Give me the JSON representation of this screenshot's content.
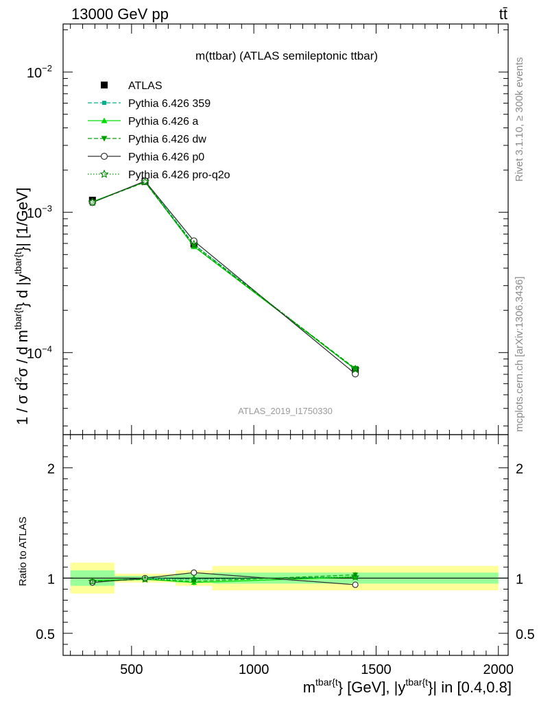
{
  "header": {
    "left": "13000 GeV pp",
    "right": "tt̄"
  },
  "side_labels": {
    "rivet": "Rivet 3.1.10, ≥ 300k events",
    "mcplots": "mcplots.cern.ch [arXiv:1306.3436]"
  },
  "chart_data": {
    "type": "line",
    "title": "m(ttbar) (ATLAS semileptonic ttbar)",
    "watermark": "ATLAS_2019_I1750330",
    "ylabel_main": {
      "prefix": "1 / σ d",
      "sup2": "2",
      "sigma_part": "σ / d m",
      "sup_tbar1": "tbar{t",
      "mid_part": "} d |y",
      "sup_tbar2": "tbar{t",
      "suffix": "}| [1/GeV]"
    },
    "ylabel_ratio": "Ratio to ATLAS",
    "xlabel": {
      "m": "m",
      "sup1": "tbar{t",
      "part1": "} [GeV], |y",
      "sup2": "tbar{t",
      "part2": "}| in [0.4,0.8]"
    },
    "xlim": [
      220,
      2040
    ],
    "ylim_main": [
      2.6e-05,
      0.022
    ],
    "ylim_ratio": [
      0.3,
      2.3
    ],
    "x_ticks": [
      500,
      1000,
      1500,
      2000
    ],
    "y_ticks_main": [
      {
        "value": 0.01,
        "base": "10",
        "exp": "−2"
      },
      {
        "value": 0.001,
        "base": "10",
        "exp": "−3"
      },
      {
        "value": 0.0001,
        "base": "10",
        "exp": "−4"
      }
    ],
    "y_ticks_ratio": [
      {
        "value": 2,
        "label": "2"
      },
      {
        "value": 1,
        "label": "1"
      },
      {
        "value": 0.5,
        "label": "0.5"
      }
    ],
    "bins": [
      [
        250,
        430
      ],
      [
        430,
        680
      ],
      [
        680,
        830
      ],
      [
        830,
        2000
      ]
    ],
    "x": [
      340,
      555,
      755,
      1415
    ],
    "data": {
      "name": "ATLAS",
      "values": [
        0.00122,
        0.00166,
        0.000595,
        7.5e-05
      ],
      "band_inner": [
        0.07,
        0.02,
        0.04,
        0.05
      ],
      "band_outer": [
        0.14,
        0.04,
        0.07,
        0.11
      ]
    },
    "series": [
      {
        "name": "Pythia 6.426 359",
        "color": "#00b08a",
        "dash": "6,3",
        "marker": "square",
        "values": [
          0.001185,
          0.00166,
          0.00059,
          7.55e-05
        ],
        "ratio": [
          0.97,
          1.0,
          0.99,
          1.01
        ]
      },
      {
        "name": "Pythia 6.426 a",
        "color": "#00dd00",
        "dash": "",
        "marker": "triangle-up",
        "values": [
          0.00119,
          0.00165,
          0.00057,
          7.6e-05
        ],
        "ratio": [
          0.98,
          0.99,
          0.96,
          1.01
        ]
      },
      {
        "name": "Pythia 6.426 dw",
        "color": "#00a000",
        "dash": "6,3",
        "marker": "triangle-down",
        "values": [
          0.00118,
          0.00164,
          0.000575,
          7.7e-05
        ],
        "ratio": [
          0.97,
          0.99,
          0.97,
          1.03
        ]
      },
      {
        "name": "Pythia 6.426 p0",
        "color": "#333333",
        "dash": "",
        "marker": "circle-open",
        "values": [
          0.001175,
          0.00167,
          0.000625,
          7.05e-05
        ],
        "ratio": [
          0.96,
          1.0,
          1.05,
          0.94
        ]
      },
      {
        "name": "Pythia 6.426 pro-q2o",
        "color": "#008800",
        "dash": "1.5,2.5",
        "marker": "star-open",
        "values": [
          0.00118,
          0.00165,
          0.00059,
          7.6e-05
        ],
        "ratio": [
          0.97,
          0.99,
          0.99,
          1.01
        ]
      }
    ],
    "legend_position": "top-left"
  }
}
